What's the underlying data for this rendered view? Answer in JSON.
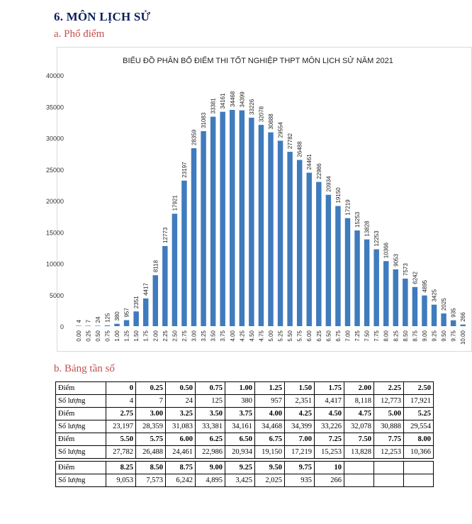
{
  "heading": "6.  MÔN LỊCH SỬ",
  "section_a": "a.  Phổ điểm",
  "section_b": "b.  Bảng tần số",
  "chart_data": {
    "type": "bar",
    "title": "BIỂU ĐỒ PHÂN BỐ ĐIỂM THI TỐT NGHIỆP THPT MÔN LỊCH SỬ NĂM 2021",
    "xlabel": "",
    "ylabel": "",
    "ylim": [
      0,
      40000
    ],
    "yticks": [
      "0",
      "5000",
      "10000",
      "15000",
      "20000",
      "25000",
      "30000",
      "35000",
      "40000"
    ],
    "grid": false,
    "bar_color": "#3f7bbd",
    "categories": [
      "0.00",
      "0.25",
      "0.50",
      "0.75",
      "1.00",
      "1.25",
      "1.50",
      "1.75",
      "2.00",
      "2.25",
      "2.50",
      "2.75",
      "3.00",
      "3.25",
      "3.50",
      "3.75",
      "4.00",
      "4.25",
      "4.50",
      "4.75",
      "5.00",
      "5.25",
      "5.50",
      "5.75",
      "6.00",
      "6.25",
      "6.50",
      "6.75",
      "7.00",
      "7.25",
      "7.50",
      "7.75",
      "8.00",
      "8.25",
      "8.50",
      "8.75",
      "9.00",
      "9.25",
      "9.50",
      "9.75",
      "10.00"
    ],
    "values": [
      4,
      7,
      24,
      125,
      380,
      957,
      2351,
      4417,
      8118,
      12773,
      17921,
      23197,
      28359,
      31083,
      33381,
      34161,
      34468,
      34399,
      33226,
      32078,
      30888,
      29554,
      27782,
      26488,
      24461,
      22986,
      20934,
      19150,
      17219,
      15253,
      13828,
      12253,
      10366,
      9053,
      7573,
      6242,
      4895,
      3425,
      2025,
      935,
      266
    ]
  },
  "table": {
    "label_point": "Điểm",
    "label_count": "Số lượng",
    "groups": [
      {
        "points": [
          "0",
          "0.25",
          "0.50",
          "0.75",
          "1.00",
          "1.25",
          "1.50",
          "1.75",
          "2.00",
          "2.25",
          "2.50"
        ],
        "counts": [
          "4",
          "7",
          "24",
          "125",
          "380",
          "957",
          "2,351",
          "4,417",
          "8,118",
          "12,773",
          "17,921"
        ]
      },
      {
        "points": [
          "2.75",
          "3.00",
          "3.25",
          "3.50",
          "3.75",
          "4.00",
          "4.25",
          "4.50",
          "4.75",
          "5.00",
          "5.25"
        ],
        "counts": [
          "23,197",
          "28,359",
          "31,083",
          "33,381",
          "34,161",
          "34,468",
          "34,399",
          "33,226",
          "32,078",
          "30,888",
          "29,554"
        ]
      },
      {
        "points": [
          "5.50",
          "5.75",
          "6.00",
          "6.25",
          "6.50",
          "6.75",
          "7.00",
          "7.25",
          "7.50",
          "7.75",
          "8.00"
        ],
        "counts": [
          "27,782",
          "26,488",
          "24,461",
          "22,986",
          "20,934",
          "19,150",
          "17,219",
          "15,253",
          "13,828",
          "12,253",
          "10,366"
        ]
      },
      {
        "points": [
          "8.25",
          "8.50",
          "8.75",
          "9.00",
          "9.25",
          "9.50",
          "9.75",
          "10",
          "",
          "",
          ""
        ],
        "counts": [
          "9,053",
          "7,573",
          "6,242",
          "4,895",
          "3,425",
          "2,025",
          "935",
          "266",
          "",
          "",
          ""
        ]
      }
    ]
  }
}
